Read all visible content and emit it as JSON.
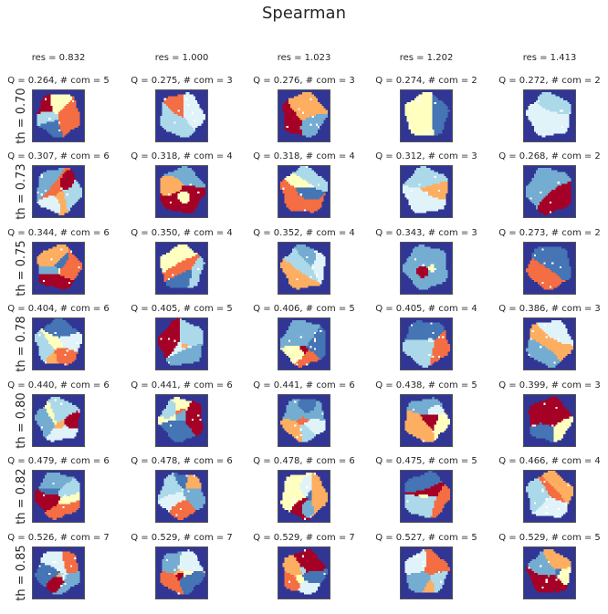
{
  "title": "Spearman",
  "chart_data": {
    "type": "heatmap",
    "title": "Spearman",
    "column_labels": [
      "res = 0.832",
      "res = 1.000",
      "res = 1.023",
      "res = 1.202",
      "res = 1.413"
    ],
    "row_labels": [
      "th = 0.70",
      "th = 0.73",
      "th = 0.75",
      "th = 0.78",
      "th = 0.80",
      "th = 0.82",
      "th = 0.85"
    ],
    "subplot_titles": [
      [
        "Q = 0.264,  # com = 5",
        "Q = 0.275,  # com = 3",
        "Q = 0.276,  # com = 3",
        "Q = 0.274,  # com = 2",
        "Q = 0.272,  # com = 2"
      ],
      [
        "Q = 0.307,  # com = 6",
        "Q = 0.318,  # com = 4",
        "Q = 0.318,  # com = 4",
        "Q = 0.312,  # com = 3",
        "Q = 0.268,  # com = 2"
      ],
      [
        "Q = 0.344,  # com = 6",
        "Q = 0.350,  # com = 4",
        "Q = 0.352,  # com = 4",
        "Q = 0.343,  # com = 3",
        "Q = 0.273,  # com = 2"
      ],
      [
        "Q = 0.404,  # com = 6",
        "Q = 0.405,  # com = 5",
        "Q = 0.406,  # com = 5",
        "Q = 0.405,  # com = 4",
        "Q = 0.386,  # com = 3"
      ],
      [
        "Q = 0.440,  # com = 6",
        "Q = 0.441,  # com = 6",
        "Q = 0.441,  # com = 6",
        "Q = 0.438,  # com = 5",
        "Q = 0.399,  # com = 3"
      ],
      [
        "Q = 0.479,  # com = 6",
        "Q = 0.478,  # com = 6",
        "Q = 0.478,  # com = 6",
        "Q = 0.475,  # com = 5",
        "Q = 0.466,  # com = 4"
      ],
      [
        "Q = 0.526,  # com = 7",
        "Q = 0.529,  # com = 7",
        "Q = 0.529,  # com = 7",
        "Q = 0.527,  # com = 5",
        "Q = 0.529,  # com = 5"
      ]
    ],
    "res": [
      0.832,
      1.0,
      1.023,
      1.202,
      1.413
    ],
    "th": [
      0.7,
      0.73,
      0.75,
      0.78,
      0.8,
      0.82,
      0.85
    ],
    "Q": [
      [
        0.264,
        0.275,
        0.276,
        0.274,
        0.272
      ],
      [
        0.307,
        0.318,
        0.318,
        0.312,
        0.268
      ],
      [
        0.344,
        0.35,
        0.352,
        0.343,
        0.273
      ],
      [
        0.404,
        0.405,
        0.406,
        0.405,
        0.386
      ],
      [
        0.44,
        0.441,
        0.441,
        0.438,
        0.399
      ],
      [
        0.479,
        0.478,
        0.478,
        0.475,
        0.466
      ],
      [
        0.526,
        0.529,
        0.529,
        0.527,
        0.529
      ]
    ],
    "n_communities": [
      [
        5,
        3,
        3,
        2,
        2
      ],
      [
        6,
        4,
        4,
        3,
        2
      ],
      [
        6,
        4,
        4,
        3,
        2
      ],
      [
        6,
        5,
        5,
        4,
        3
      ],
      [
        6,
        6,
        6,
        5,
        3
      ],
      [
        6,
        6,
        6,
        5,
        4
      ],
      [
        7,
        7,
        7,
        5,
        5
      ]
    ],
    "colormap": "RdYlBu",
    "background_color": "#313695",
    "palette": [
      "#a50026",
      "#f46d43",
      "#fdae61",
      "#ffffbf",
      "#abd9e9",
      "#74add1",
      "#4575b4",
      "#e0f3f8"
    ]
  }
}
